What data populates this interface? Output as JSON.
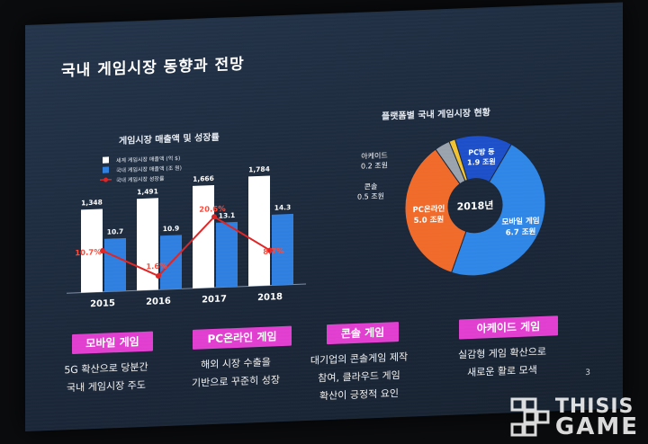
{
  "slide": {
    "title": "국내 게임시장 동향과 전망"
  },
  "chart_data": [
    {
      "type": "bar",
      "title": "게임시장 매출액 및 성장률",
      "categories": [
        "2015",
        "2016",
        "2017",
        "2018"
      ],
      "series": [
        {
          "name": "세계 게임시장 매출액 (억 $)",
          "kind": "bar",
          "color": "#ffffff",
          "values": [
            1348,
            1491,
            1666,
            1784
          ],
          "labels": [
            "1,348",
            "1,491",
            "1,666",
            "1,784"
          ]
        },
        {
          "name": "국내 게임시장 매출액 (조 원)",
          "kind": "bar",
          "color": "#2f7fe0",
          "values": [
            10.7,
            10.9,
            13.1,
            14.3
          ],
          "labels": [
            "10.7",
            "10.9",
            "13.1",
            "14.3"
          ]
        },
        {
          "name": "국내 게임시장 성장률",
          "kind": "line",
          "color": "#e02424",
          "values": [
            10.7,
            1.6,
            20.6,
            8.7
          ],
          "labels": [
            "10.7%",
            "1.6%",
            "20.6%",
            "8.7%"
          ]
        }
      ],
      "legend": "top-left"
    },
    {
      "type": "pie",
      "title": "플랫폼별 국내 게임시장 현황",
      "center_label": "2018년",
      "slices": [
        {
          "name": "모바일 게임",
          "value": 6.7,
          "label": "6.7 조원",
          "color": "#2f86e6"
        },
        {
          "name": "PC온라인",
          "value": 5.0,
          "label": "5.0 조원",
          "color": "#f06a2a"
        },
        {
          "name": "콘솔",
          "value": 0.5,
          "label": "0.5 조원",
          "color": "#9aa3ad"
        },
        {
          "name": "아케이드",
          "value": 0.2,
          "label": "0.2 조원",
          "color": "#f2c230"
        },
        {
          "name": "PC방 등",
          "value": 1.9,
          "label": "1.9 조원",
          "color": "#1c4fc9"
        }
      ]
    }
  ],
  "categories": [
    {
      "label": "모바일 게임",
      "lines": [
        "5G 확산으로 당분간",
        "국내 게임시장 주도"
      ]
    },
    {
      "label": "PC온라인 게임",
      "lines": [
        "해외 시장 수출을",
        "기반으로 꾸준히 성장"
      ]
    },
    {
      "label": "콘솔 게임",
      "lines": [
        "대기업의 콘솔게임 제작",
        "참여, 클라우드 게임",
        "확산이 긍정적 요인"
      ]
    },
    {
      "label": "아케이드 게임",
      "lines": [
        "실감형 게임 확산으로",
        "새로운 활로 모색"
      ]
    }
  ],
  "page_number": "3",
  "watermark": {
    "line1": "THISIS",
    "line2": "GAME"
  }
}
